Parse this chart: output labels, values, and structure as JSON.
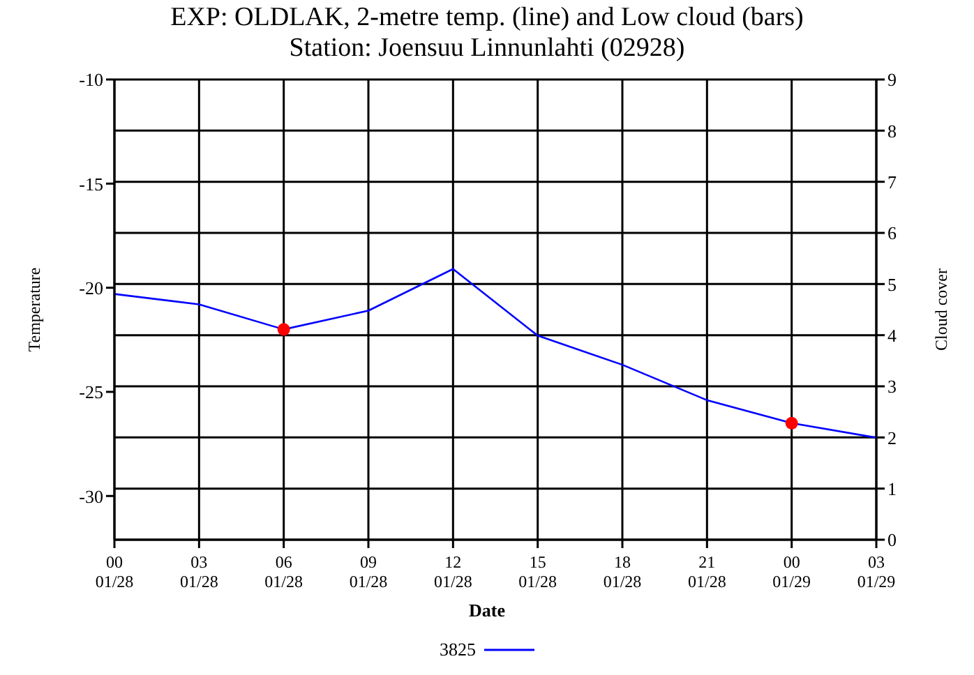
{
  "chart_data": {
    "type": "line",
    "title": "EXP: OLDLAK, 2-metre temp. (line) and Low cloud (bars)",
    "subtitle": "Station: Joensuu  Linnunlahti (02928)",
    "xlabel": "Date",
    "ylabel": "Temperature",
    "y2label": "Cloud cover",
    "categories": [
      "00\n01/28",
      "03\n01/28",
      "06\n01/28",
      "09\n01/28",
      "12\n01/28",
      "15\n01/28",
      "18\n01/28",
      "21\n01/28",
      "00\n01/29",
      "03\n01/29"
    ],
    "series": [
      {
        "name": "3825",
        "color": "#0000ff",
        "values": [
          -20.3,
          -20.8,
          -22.0,
          -21.1,
          -19.1,
          -22.3,
          -23.7,
          -25.4,
          -26.5,
          -27.2
        ]
      },
      {
        "type": "scatter",
        "color": "#ff0000",
        "marker": "circle",
        "x": [
          "06\n01/28",
          "00\n01/29"
        ],
        "values": [
          -22.0,
          -26.5
        ]
      }
    ],
    "ylim": [
      -32.1,
      -10
    ],
    "yticks": [
      -10,
      -15,
      -20,
      -25,
      -30
    ],
    "y2lim": [
      0,
      9
    ],
    "y2ticks": [
      0,
      1,
      2,
      3,
      4,
      5,
      6,
      7,
      8,
      9
    ],
    "grid": true,
    "legend": "bottom",
    "marker": "none",
    "line_style": "solid"
  }
}
